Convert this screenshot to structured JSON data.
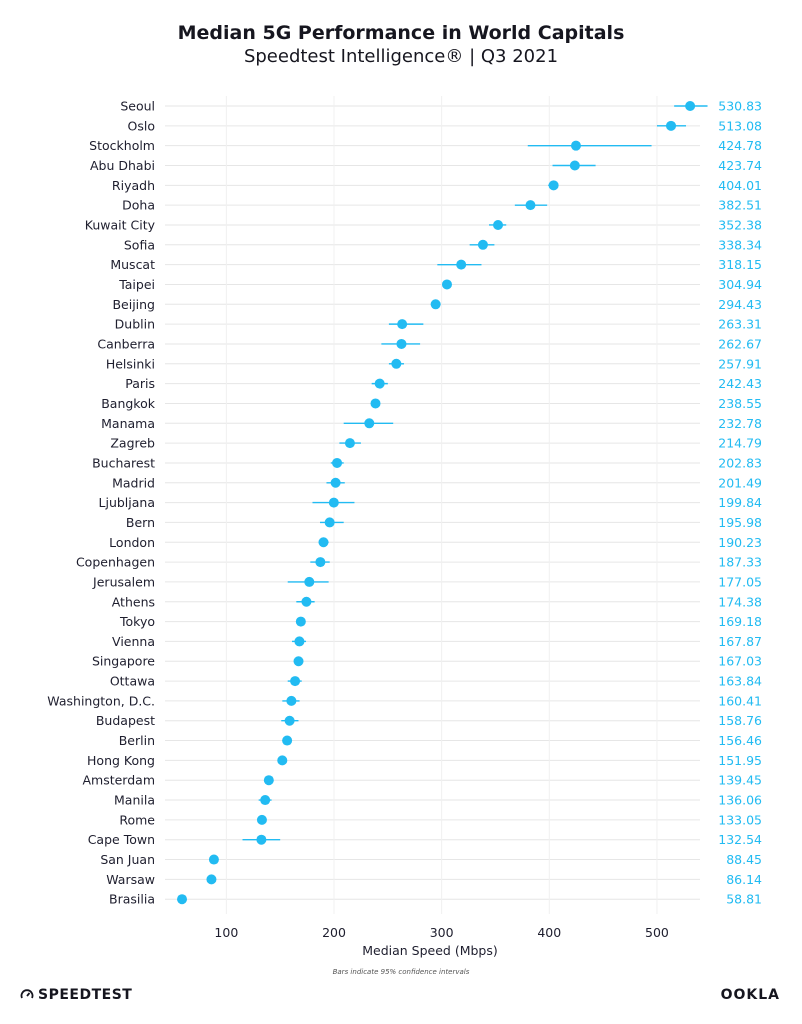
{
  "header": {
    "title": "Median 5G Performance in World Capitals",
    "subtitle": "Speedtest Intelligence® | Q3 2021"
  },
  "footer": {
    "note": "Bars indicate 95% confidence intervals",
    "brand_left": "SPEEDTEST",
    "brand_right": "OOKLA"
  },
  "colors": {
    "accent": "#22bbf2",
    "grid": "#e6e6e6",
    "text": "#1e1e2e"
  },
  "chart_data": {
    "type": "scatter",
    "title": "Median 5G Performance in World Capitals",
    "subtitle": "Speedtest Intelligence® | Q3 2021",
    "xlabel": "Median Speed (Mbps)",
    "xlim": [
      43,
      540
    ],
    "xticks": [
      100,
      200,
      300,
      400,
      500
    ],
    "grid": true,
    "categories": [
      "Seoul",
      "Oslo",
      "Stockholm",
      "Abu Dhabi",
      "Riyadh",
      "Doha",
      "Kuwait City",
      "Sofia",
      "Muscat",
      "Taipei",
      "Beijing",
      "Dublin",
      "Canberra",
      "Helsinki",
      "Paris",
      "Bangkok",
      "Manama",
      "Zagreb",
      "Bucharest",
      "Madrid",
      "Ljubljana",
      "Bern",
      "London",
      "Copenhagen",
      "Jerusalem",
      "Athens",
      "Tokyo",
      "Vienna",
      "Singapore",
      "Ottawa",
      "Washington, D.C.",
      "Budapest",
      "Berlin",
      "Hong Kong",
      "Amsterdam",
      "Manila",
      "Rome",
      "Cape Town",
      "San Juan",
      "Warsaw",
      "Brasilia"
    ],
    "values": [
      530.83,
      513.08,
      424.78,
      423.74,
      404.01,
      382.51,
      352.38,
      338.34,
      318.15,
      304.94,
      294.43,
      263.31,
      262.67,
      257.91,
      242.43,
      238.55,
      232.78,
      214.79,
      202.83,
      201.49,
      199.84,
      195.98,
      190.23,
      187.33,
      177.05,
      174.38,
      169.18,
      167.87,
      167.03,
      163.84,
      160.41,
      158.76,
      156.46,
      151.95,
      139.45,
      136.06,
      133.05,
      132.54,
      88.45,
      86.14,
      58.81
    ],
    "value_labels": [
      "530.83",
      "513.08",
      "424.78",
      "423.74",
      "404.01",
      "382.51",
      "352.38",
      "338.34",
      "318.15",
      "304.94",
      "294.43",
      "263.31",
      "262.67",
      "257.91",
      "242.43",
      "238.55",
      "232.78",
      "214.79",
      "202.83",
      "201.49",
      "199.84",
      "195.98",
      "190.23",
      "187.33",
      "177.05",
      "174.38",
      "169.18",
      "167.87",
      "167.03",
      "163.84",
      "160.41",
      "158.76",
      "156.46",
      "151.95",
      "139.45",
      "136.06",
      "133.05",
      "132.54",
      "88.45",
      "86.14",
      "58.81"
    ],
    "ci_low": [
      516,
      500,
      380,
      403,
      399,
      368,
      344,
      326,
      296,
      302,
      290,
      251,
      244,
      251,
      235,
      235,
      209,
      205,
      197,
      193,
      180,
      187,
      186,
      178,
      157,
      165,
      165,
      161,
      163,
      157,
      152,
      151,
      152,
      148,
      137,
      130,
      129,
      115,
      86,
      84,
      55
    ],
    "ci_high": [
      547,
      527,
      495,
      443,
      408,
      398,
      360,
      349,
      337,
      309,
      299,
      283,
      280,
      265,
      250,
      242,
      255,
      225,
      209,
      210,
      219,
      209,
      195,
      196,
      195,
      182,
      173,
      174,
      171,
      170,
      168,
      167,
      160,
      156,
      142,
      142,
      137,
      150,
      91,
      88,
      62
    ]
  }
}
